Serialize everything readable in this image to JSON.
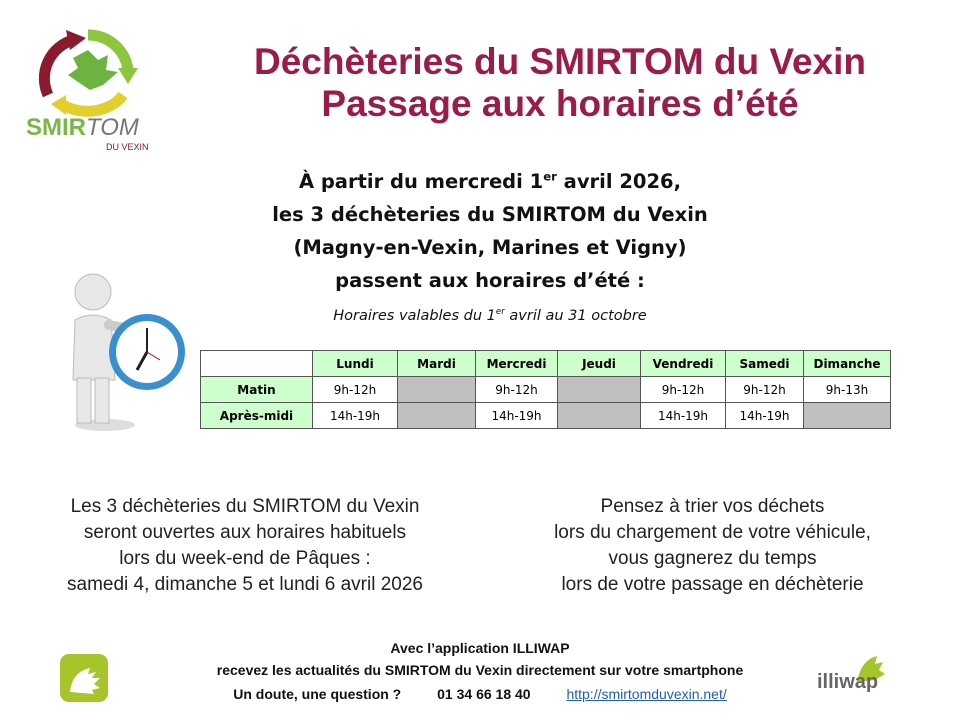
{
  "logo": {
    "text": "SMIRTOM",
    "subtext": "DU VEXIN"
  },
  "header": {
    "title_line1": "Déchèteries du SMIRTOM du Vexin",
    "title_line2": "Passage aux horaires d’été"
  },
  "intro": {
    "line1_a": "À partir du mercredi 1",
    "line1_sup": "er",
    "line1_b": " avril 2026,",
    "line2": "les 3 déchèteries du SMIRTOM du Vexin",
    "line3": "(Magny-en-Vexin, Marines et Vigny)",
    "line4": "passent aux horaires d’été :"
  },
  "validity": {
    "a": "Horaires valables du 1",
    "sup": "er",
    "b": " avril au 31 octobre"
  },
  "schedule": {
    "days": [
      "Lundi",
      "Mardi",
      "Mercredi",
      "Jeudi",
      "Vendredi",
      "Samedi",
      "Dimanche"
    ],
    "rows": [
      {
        "label": "Matin",
        "cells": [
          "9h-12h",
          "",
          "9h-12h",
          "",
          "9h-12h",
          "9h-12h",
          "9h-13h"
        ]
      },
      {
        "label": "Après-midi",
        "cells": [
          "14h-19h",
          "",
          "14h-19h",
          "",
          "14h-19h",
          "14h-19h",
          ""
        ]
      }
    ]
  },
  "left_note": [
    "Les 3 déchèteries du SMIRTOM du Vexin",
    "seront ouvertes aux horaires habituels",
    "lors du week-end de Pâques :",
    "samedi 4, dimanche 5 et lundi 6 avril 2026"
  ],
  "right_note": [
    "Pensez à trier vos déchets",
    "lors du chargement de votre véhicule,",
    "vous gagnerez du temps",
    "lors de votre passage en déchèterie"
  ],
  "footer": {
    "line1": "Avec l’application ILLIWAP",
    "line2": "recevez les actualités du SMIRTOM du Vexin directement sur votre smartphone",
    "question": "Un doute, une question ?",
    "phone": "01 34 66 18 40",
    "link": "http://smirtomduvexin.net/"
  },
  "illiwap_logo": {
    "text": "illiwap"
  },
  "colors": {
    "title": "#9b1c4a",
    "table_header": "#ccffcc",
    "closed": "#c0c0c0",
    "link": "#1f5fae"
  }
}
